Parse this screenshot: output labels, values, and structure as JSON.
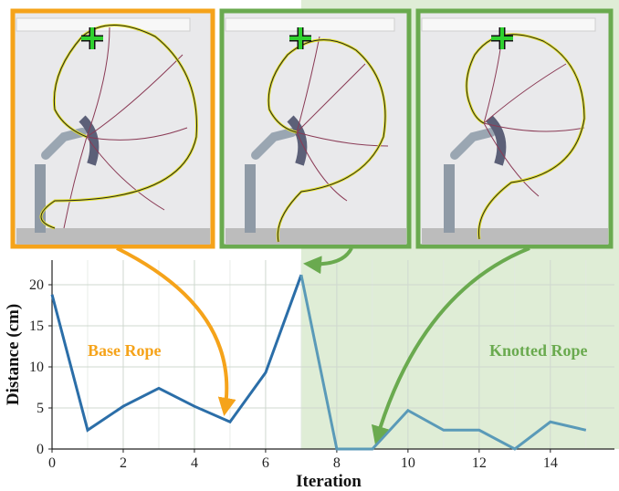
{
  "chart_data": {
    "type": "line",
    "xlabel": "Iteration",
    "ylabel": "Distance (cm)",
    "xlim": [
      0,
      15.8
    ],
    "ylim": [
      0,
      23
    ],
    "xticks": [
      0,
      2,
      4,
      6,
      8,
      10,
      12,
      14
    ],
    "yticks": [
      0,
      5,
      10,
      15,
      20
    ],
    "grid": true,
    "regions": [
      {
        "label": "Base Rope",
        "x_start": 0,
        "x_end": 7,
        "color": "#f5a31a",
        "shaded": false
      },
      {
        "label": "Knotted Rope",
        "x_start": 7,
        "x_end": 15.8,
        "color": "#6aaa4f",
        "shaded": true
      }
    ],
    "series": [
      {
        "color": "#2b6ea8",
        "x": [
          0,
          1,
          2,
          3,
          4,
          5,
          6,
          7
        ],
        "y": [
          18.8,
          2.3,
          5.2,
          7.4,
          5.2,
          3.3,
          9.3,
          21.2
        ]
      },
      {
        "color": "#5a9ab8",
        "x": [
          7,
          8,
          9,
          10,
          11,
          12,
          13,
          14,
          15
        ],
        "y": [
          21.2,
          0,
          0,
          4.7,
          2.3,
          2.3,
          0,
          3.3,
          2.3
        ]
      }
    ],
    "insets": [
      {
        "name": "base-rope-frame",
        "border": "#f5a31a",
        "points_to": {
          "x": 5,
          "y": 3.3
        }
      },
      {
        "name": "knotted-rope-frame-1",
        "border": "#6aaa4f",
        "points_to": {
          "x": 7,
          "y": 21.2
        }
      },
      {
        "name": "knotted-rope-frame-2",
        "border": "#6aaa4f",
        "points_to": {
          "x": 9,
          "y": 0
        }
      }
    ]
  }
}
